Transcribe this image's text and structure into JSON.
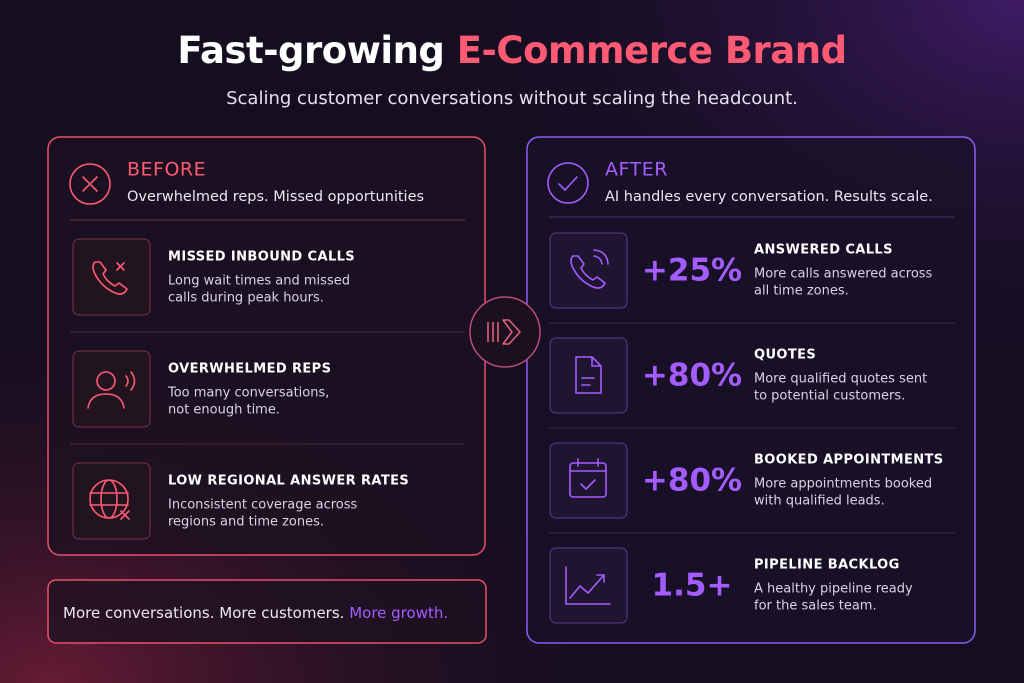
{
  "header": {
    "title_start": "Fast-growing",
    "title_accent": "E-Commerce Brand",
    "subtitle": "Scaling customer conversations without scaling the headcount."
  },
  "before": {
    "label": "BEFORE",
    "subtitle": "Overwhelmed reps. Missed opportunities",
    "items": [
      {
        "title": "MISSED INBOUND CALLS",
        "lines": [
          "Long wait times and missed",
          "calls during peak hours."
        ]
      },
      {
        "title": "OVERWHELMED REPS",
        "lines": [
          "Too many conversations,",
          "not enough time."
        ]
      },
      {
        "title": "LOW REGIONAL ANSWER RATES",
        "lines": [
          "Inconsistent coverage across",
          "regions and time zones."
        ]
      }
    ]
  },
  "after": {
    "label": "AFTER",
    "subtitle": "AI handles every conversation. Results scale.",
    "items": [
      {
        "stat": "+25%",
        "title": "ANSWERED CALLS",
        "lines": [
          "More calls answered across",
          "all time zones."
        ]
      },
      {
        "stat": "+80%",
        "title": "QUOTES",
        "lines": [
          "More qualified quotes sent",
          "to potential customers."
        ]
      },
      {
        "stat": "+80%",
        "title": "BOOKED APPOINTMENTS",
        "lines": [
          "More appointments booked",
          "with qualified leads."
        ]
      },
      {
        "stat": "1.5+",
        "title": "PIPELINE BACKLOG",
        "lines": [
          "A healthy pipeline ready",
          "for the sales team."
        ]
      }
    ]
  },
  "footer": {
    "text": "More conversations. More customers.",
    "accent": "More growth."
  }
}
